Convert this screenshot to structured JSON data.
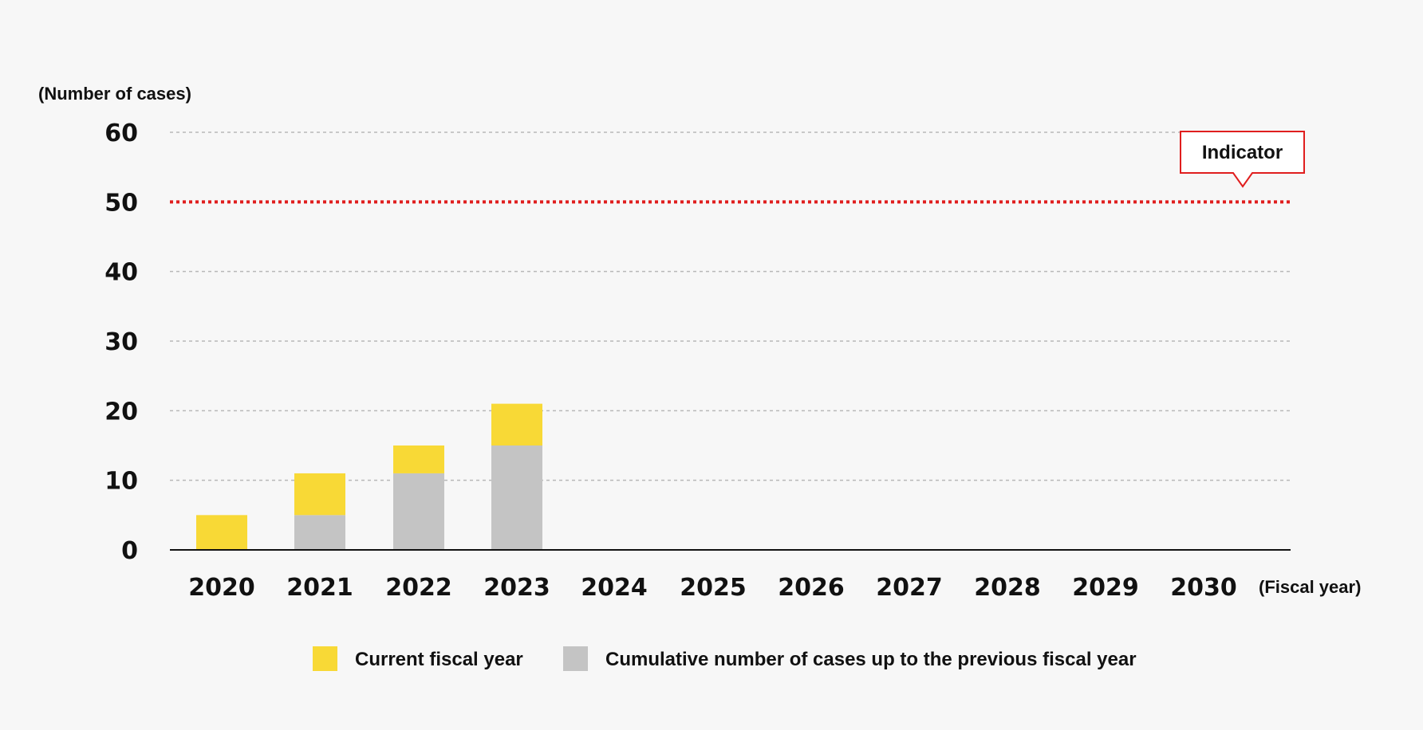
{
  "chart_data": {
    "type": "bar",
    "stacked": true,
    "ylabel": "(Number of cases)",
    "xlabel": "(Fiscal year)",
    "ylim": [
      0,
      60
    ],
    "yticks": [
      0,
      10,
      20,
      30,
      40,
      50,
      60
    ],
    "categories": [
      "2020",
      "2021",
      "2022",
      "2023",
      "2024",
      "2025",
      "2026",
      "2027",
      "2028",
      "2029",
      "2030"
    ],
    "series": [
      {
        "name": "Cumulative number of cases up to the previous fiscal year",
        "color": "#c4c4c4",
        "values": [
          0,
          5,
          11,
          15,
          null,
          null,
          null,
          null,
          null,
          null,
          null
        ]
      },
      {
        "name": "Current fiscal year",
        "color": "#f8d936",
        "values": [
          5,
          6,
          4,
          6,
          null,
          null,
          null,
          null,
          null,
          null,
          null
        ]
      }
    ],
    "indicator": {
      "label": "Indicator",
      "value": 50,
      "color": "#e01e1e"
    },
    "grid": true,
    "legend_position": "bottom"
  }
}
